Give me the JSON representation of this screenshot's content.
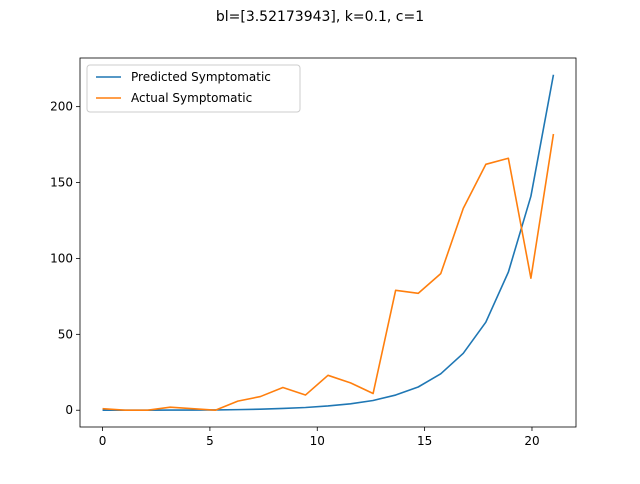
{
  "chart_data": {
    "type": "line",
    "title": "bl=[3.52173943], k=0.1, c=1",
    "xlabel": "",
    "ylabel": "",
    "xlim": [
      -1.05,
      22.05
    ],
    "ylim": [
      -11.05,
      232.05
    ],
    "x_ticks": [
      0,
      5,
      10,
      15,
      20
    ],
    "y_ticks": [
      0,
      50,
      100,
      150,
      200
    ],
    "legend_position": "upper-left",
    "grid": false,
    "x": [
      0,
      1.05,
      2.1,
      3.15,
      4.2,
      5.25,
      6.3,
      7.35,
      8.4,
      9.45,
      10.5,
      11.55,
      12.6,
      13.65,
      14.7,
      15.75,
      16.8,
      17.85,
      18.9,
      19.95,
      21.0
    ],
    "series": [
      {
        "name": "Predicted Symptomatic",
        "color": "#1f77b4",
        "values": [
          0,
          0,
          0,
          0.1,
          0.1,
          0.2,
          0.4,
          0.7,
          1.2,
          1.8,
          2.8,
          4.2,
          6.4,
          10.0,
          15.3,
          24.0,
          37.5,
          58.0,
          91.0,
          141.0,
          221.0
        ]
      },
      {
        "name": "Actual Symptomatic",
        "color": "#ff7f0e",
        "values": [
          1,
          0,
          0,
          2,
          1,
          0,
          6,
          9,
          15,
          10,
          23,
          18,
          11,
          79,
          77,
          90,
          133,
          162,
          166,
          87,
          182
        ]
      }
    ]
  }
}
